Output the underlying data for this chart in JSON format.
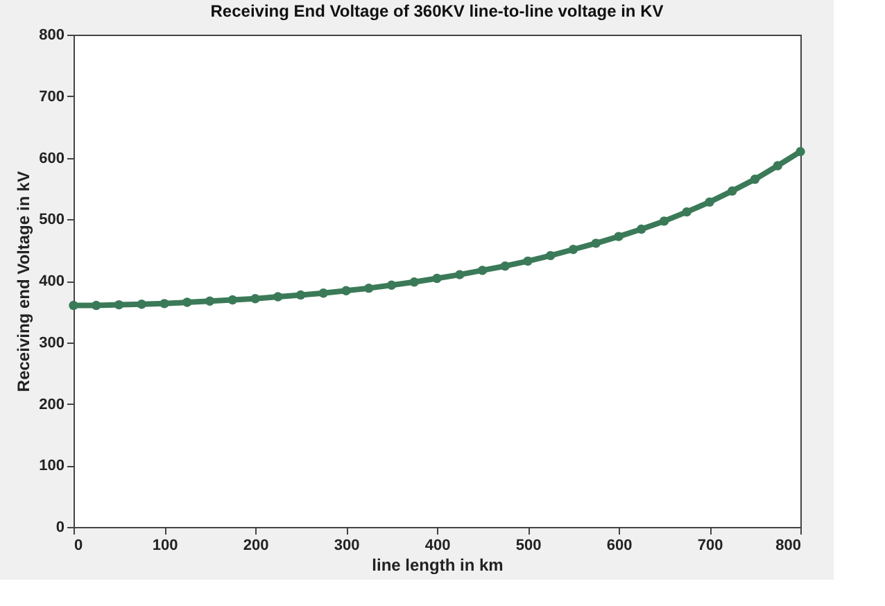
{
  "chart_data": {
    "type": "line",
    "title": "Receiving End Voltage of 360KV line-to-line voltage in KV",
    "xlabel": "line length in km",
    "ylabel": "Receiving end Voltage in kV",
    "x": [
      0,
      25,
      50,
      75,
      100,
      125,
      150,
      175,
      200,
      225,
      250,
      275,
      300,
      325,
      350,
      375,
      400,
      425,
      450,
      475,
      500,
      525,
      550,
      575,
      600,
      625,
      650,
      675,
      700,
      725,
      750,
      775,
      800
    ],
    "series": [
      {
        "color": "#3b7a58",
        "values": [
          360,
          360,
          361,
          362,
          363,
          365,
          367,
          369,
          371,
          374,
          377,
          380,
          384,
          388,
          393,
          398,
          404,
          410,
          417,
          424,
          432,
          441,
          451,
          461,
          472,
          484,
          497,
          512,
          528,
          546,
          565,
          587,
          610
        ]
      }
    ],
    "xlim": [
      0,
      800
    ],
    "xticks": [
      0,
      100,
      200,
      300,
      400,
      500,
      600,
      700,
      800
    ],
    "ylim": [
      0,
      800
    ],
    "yticks": [
      0,
      100,
      200,
      300,
      400,
      500,
      600,
      700,
      800
    ],
    "grid": false,
    "marker": "circle",
    "line_style": "solid"
  }
}
